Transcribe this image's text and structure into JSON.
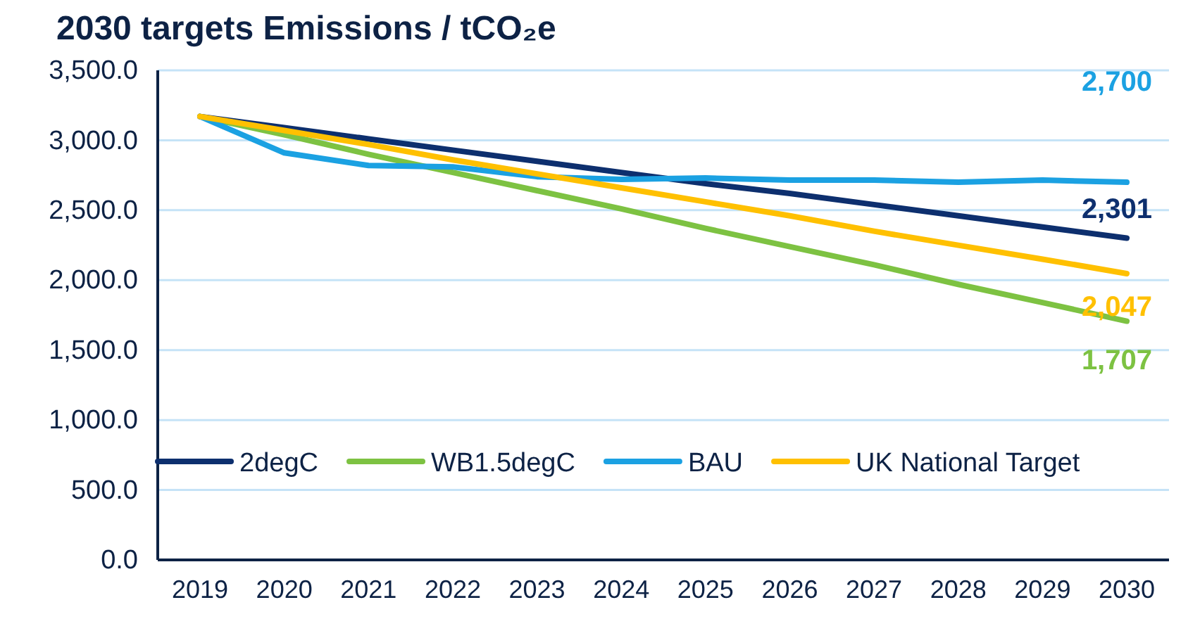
{
  "chart_data": {
    "type": "line",
    "title": "2030 targets Emissions / tCO₂e",
    "categories": [
      "2019",
      "2020",
      "2021",
      "2022",
      "2023",
      "2024",
      "2025",
      "2026",
      "2027",
      "2028",
      "2029",
      "2030"
    ],
    "series": [
      {
        "name": "2degC",
        "color": "#0d2f6e",
        "values": [
          3170,
          3090,
          3010,
          2930,
          2850,
          2770,
          2690,
          2620,
          2540,
          2460,
          2380,
          2301
        ],
        "value_labels": [
          null,
          null,
          null,
          null,
          null,
          null,
          null,
          null,
          null,
          null,
          null,
          "2,301"
        ]
      },
      {
        "name": "WB1.5degC",
        "color": "#7dc242",
        "values": [
          3170,
          3040,
          2900,
          2770,
          2640,
          2510,
          2370,
          2240,
          2110,
          1970,
          1840,
          1707
        ],
        "value_labels": [
          null,
          null,
          null,
          null,
          null,
          null,
          null,
          null,
          null,
          null,
          null,
          "1,707"
        ]
      },
      {
        "name": "BAU",
        "color": "#1ba1e2",
        "values": [
          3170,
          2910,
          2820,
          2810,
          2740,
          2720,
          2730,
          2715,
          2715,
          2700,
          2715,
          2700
        ],
        "value_labels": [
          null,
          null,
          null,
          null,
          null,
          null,
          null,
          null,
          null,
          null,
          null,
          "2,700"
        ]
      },
      {
        "name": "UK National Target",
        "color": "#ffc000",
        "values": [
          3170,
          3070,
          2970,
          2860,
          2760,
          2660,
          2560,
          2460,
          2350,
          2250,
          2150,
          2047
        ],
        "value_labels": [
          null,
          null,
          null,
          null,
          null,
          null,
          null,
          null,
          null,
          null,
          null,
          "2,047"
        ]
      }
    ],
    "ylim": [
      0,
      3500
    ],
    "yticks": [
      {
        "value": 0,
        "label": "0.0"
      },
      {
        "value": 500,
        "label": "500.0"
      },
      {
        "value": 1000,
        "label": "1,000.0"
      },
      {
        "value": 1500,
        "label": "1,500.0"
      },
      {
        "value": 2000,
        "label": "2,000.0"
      },
      {
        "value": 2500,
        "label": "2,500.0"
      },
      {
        "value": 3000,
        "label": "3,000.0"
      },
      {
        "value": 3500,
        "label": "3,500.0"
      }
    ],
    "grid": "y",
    "legend": "bottom",
    "line_style": "solid",
    "marker": "none"
  }
}
